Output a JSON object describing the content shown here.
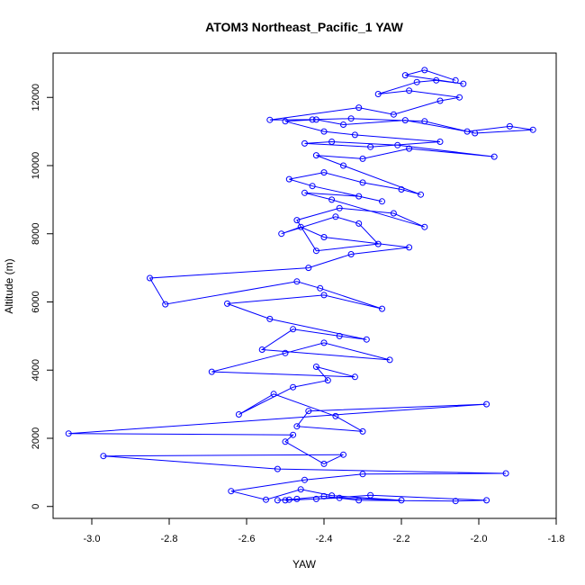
{
  "colors": {
    "series": "#0000ff",
    "axis": "#000000",
    "background": "#ffffff"
  },
  "chart_data": {
    "type": "line",
    "title": "ATOM3 Northeast_Pacific_1 YAW",
    "xlabel": "YAW",
    "ylabel": "Altitude (m)",
    "xlim": [
      -3.1,
      -1.8
    ],
    "ylim": [
      -350,
      13300
    ],
    "x_ticks": [
      -3.0,
      -2.8,
      -2.6,
      -2.4,
      -2.2,
      -2.0,
      -1.8
    ],
    "x_tick_labels": [
      "-3.0",
      "-2.8",
      "-2.6",
      "-2.4",
      "-2.2",
      "-2.0",
      "-1.8"
    ],
    "y_ticks": [
      0,
      2000,
      4000,
      6000,
      8000,
      10000,
      12000
    ],
    "y_tick_labels": [
      "0",
      "2000",
      "4000",
      "6000",
      "8000",
      "10000",
      "12000"
    ],
    "grid": false,
    "marker": "open-circle",
    "series": [
      {
        "x": [
          -2.49,
          -2.52,
          -2.47,
          -2.4,
          -2.31,
          -2.06,
          -1.98,
          -2.28,
          -2.42,
          -2.5,
          -2.36,
          -2.2,
          -2.38,
          -2.46,
          -2.55,
          -2.64,
          -2.45,
          -2.3,
          -1.93,
          -2.52,
          -2.97,
          -2.35,
          -2.4,
          -2.5,
          -2.48,
          -3.06,
          -1.98,
          -2.44,
          -2.47,
          -2.3,
          -2.37,
          -2.53,
          -2.62,
          -2.48,
          -2.39,
          -2.42,
          -2.32,
          -2.69,
          -2.5,
          -2.4,
          -2.23,
          -2.56,
          -2.48,
          -2.36,
          -2.29,
          -2.54,
          -2.65,
          -2.4,
          -2.25,
          -2.41,
          -2.47,
          -2.81,
          -2.85,
          -2.44,
          -2.33,
          -2.18,
          -2.4,
          -2.46,
          -2.51,
          -2.37,
          -2.31,
          -2.26,
          -2.42,
          -2.47,
          -2.36,
          -2.22,
          -2.14,
          -2.38,
          -2.45,
          -2.31,
          -2.25,
          -2.43,
          -2.49,
          -2.4,
          -2.3,
          -2.2,
          -2.15,
          -2.35,
          -2.42,
          -2.3,
          -2.18,
          -1.96,
          -2.21,
          -2.38,
          -2.45,
          -2.28,
          -2.1,
          -2.32,
          -2.4,
          -2.5,
          -2.42,
          -2.35,
          -2.19,
          -2.03,
          -1.92,
          -1.86,
          -2.01,
          -2.14,
          -2.33,
          -2.43,
          -2.54,
          -2.31,
          -2.22,
          -2.1,
          -2.05,
          -2.18,
          -2.26,
          -2.16,
          -2.11,
          -2.04,
          -2.19,
          -2.14,
          -2.06
        ],
        "y": [
          200,
          180,
          220,
          300,
          180,
          160,
          180,
          330,
          220,
          180,
          250,
          180,
          320,
          500,
          200,
          450,
          780,
          950,
          970,
          1100,
          1480,
          1520,
          1250,
          1900,
          2100,
          2140,
          3000,
          2800,
          2350,
          2200,
          2650,
          3300,
          2700,
          3500,
          3700,
          4100,
          3800,
          3950,
          4500,
          4800,
          4300,
          4600,
          5200,
          5000,
          4900,
          5500,
          5950,
          6200,
          5800,
          6400,
          6600,
          5930,
          6700,
          7000,
          7400,
          7600,
          7900,
          8200,
          8000,
          8500,
          8300,
          7700,
          7500,
          8400,
          8750,
          8600,
          8200,
          9000,
          9200,
          9100,
          8950,
          9400,
          9600,
          9800,
          9500,
          9300,
          9150,
          10000,
          10300,
          10200,
          10500,
          10260,
          10600,
          10700,
          10650,
          10550,
          10700,
          10900,
          11000,
          11300,
          11350,
          11200,
          11330,
          11000,
          11150,
          11050,
          10950,
          11300,
          11380,
          11350,
          11340,
          11700,
          11500,
          11900,
          12000,
          12200,
          12100,
          12450,
          12500,
          12400,
          12650,
          12800,
          12500
        ]
      }
    ]
  }
}
